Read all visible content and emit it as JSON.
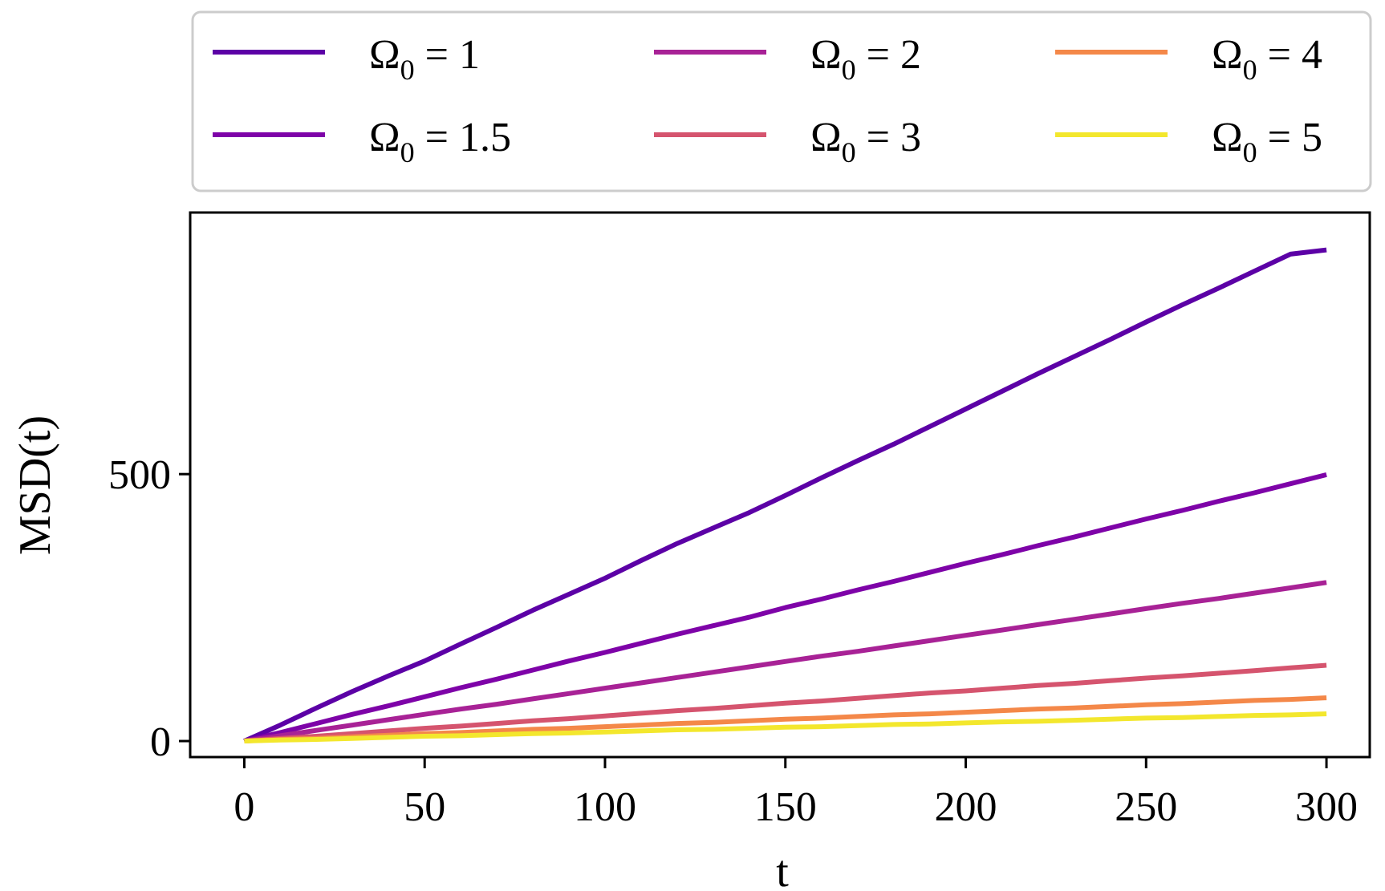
{
  "chart_data": {
    "type": "line",
    "xlabel": "t",
    "ylabel": "MSD(t)",
    "xlim": [
      -15,
      312
    ],
    "ylim": [
      -30,
      990
    ],
    "xticks": [
      0,
      50,
      100,
      150,
      200,
      250,
      300
    ],
    "yticks": [
      0,
      500
    ],
    "grid": false,
    "legend": {
      "placement": "top, outside plot, 3 columns",
      "symbol": "Ω",
      "subscript": "0",
      "operator": "="
    },
    "series": [
      {
        "label_value": "1",
        "color": "#5c01a6",
        "slope": 3.1
      },
      {
        "label_value": "1.5",
        "color": "#7e03a8",
        "slope": 1.66
      },
      {
        "label_value": "2",
        "color": "#a82296",
        "slope": 0.99
      },
      {
        "label_value": "3",
        "color": "#d5546e",
        "slope": 0.47
      },
      {
        "label_value": "4",
        "color": "#f48849",
        "slope": 0.27
      },
      {
        "label_value": "5",
        "color": "#f3e72d",
        "slope": 0.17
      }
    ],
    "x": [
      0,
      10,
      20,
      30,
      40,
      50,
      60,
      70,
      80,
      90,
      100,
      110,
      120,
      130,
      140,
      150,
      160,
      170,
      180,
      190,
      200,
      210,
      220,
      230,
      240,
      250,
      260,
      270,
      280,
      290,
      300
    ],
    "series_values": [
      [
        0,
        30,
        62,
        93,
        122,
        150,
        182,
        213,
        245,
        275,
        305,
        338,
        370,
        399,
        428,
        460,
        493,
        525,
        556,
        589,
        622,
        655,
        688,
        720,
        752,
        785,
        817,
        848,
        880,
        912,
        920
      ],
      [
        0,
        16,
        33,
        50,
        66,
        83,
        100,
        116,
        133,
        150,
        166,
        183,
        200,
        216,
        232,
        250,
        266,
        283,
        299,
        316,
        333,
        349,
        366,
        382,
        399,
        416,
        432,
        449,
        465,
        482,
        499
      ],
      [
        0,
        10,
        20,
        30,
        40,
        50,
        60,
        69,
        79,
        89,
        99,
        109,
        119,
        129,
        139,
        149,
        159,
        168,
        178,
        188,
        198,
        208,
        218,
        228,
        238,
        248,
        258,
        267,
        277,
        287,
        297
      ],
      [
        0,
        5,
        9,
        14,
        19,
        24,
        28,
        33,
        38,
        42,
        47,
        52,
        57,
        61,
        66,
        71,
        75,
        80,
        85,
        90,
        94,
        99,
        104,
        108,
        113,
        118,
        122,
        127,
        132,
        137,
        142
      ],
      [
        0,
        3,
        5,
        8,
        11,
        14,
        16,
        19,
        22,
        24,
        27,
        30,
        33,
        35,
        38,
        41,
        43,
        46,
        49,
        51,
        54,
        57,
        60,
        62,
        65,
        68,
        70,
        73,
        76,
        78,
        81
      ],
      [
        0,
        2,
        3,
        5,
        7,
        9,
        10,
        12,
        14,
        15,
        17,
        19,
        21,
        22,
        24,
        26,
        27,
        29,
        31,
        32,
        34,
        36,
        37,
        39,
        41,
        43,
        44,
        46,
        48,
        49,
        51
      ]
    ]
  }
}
